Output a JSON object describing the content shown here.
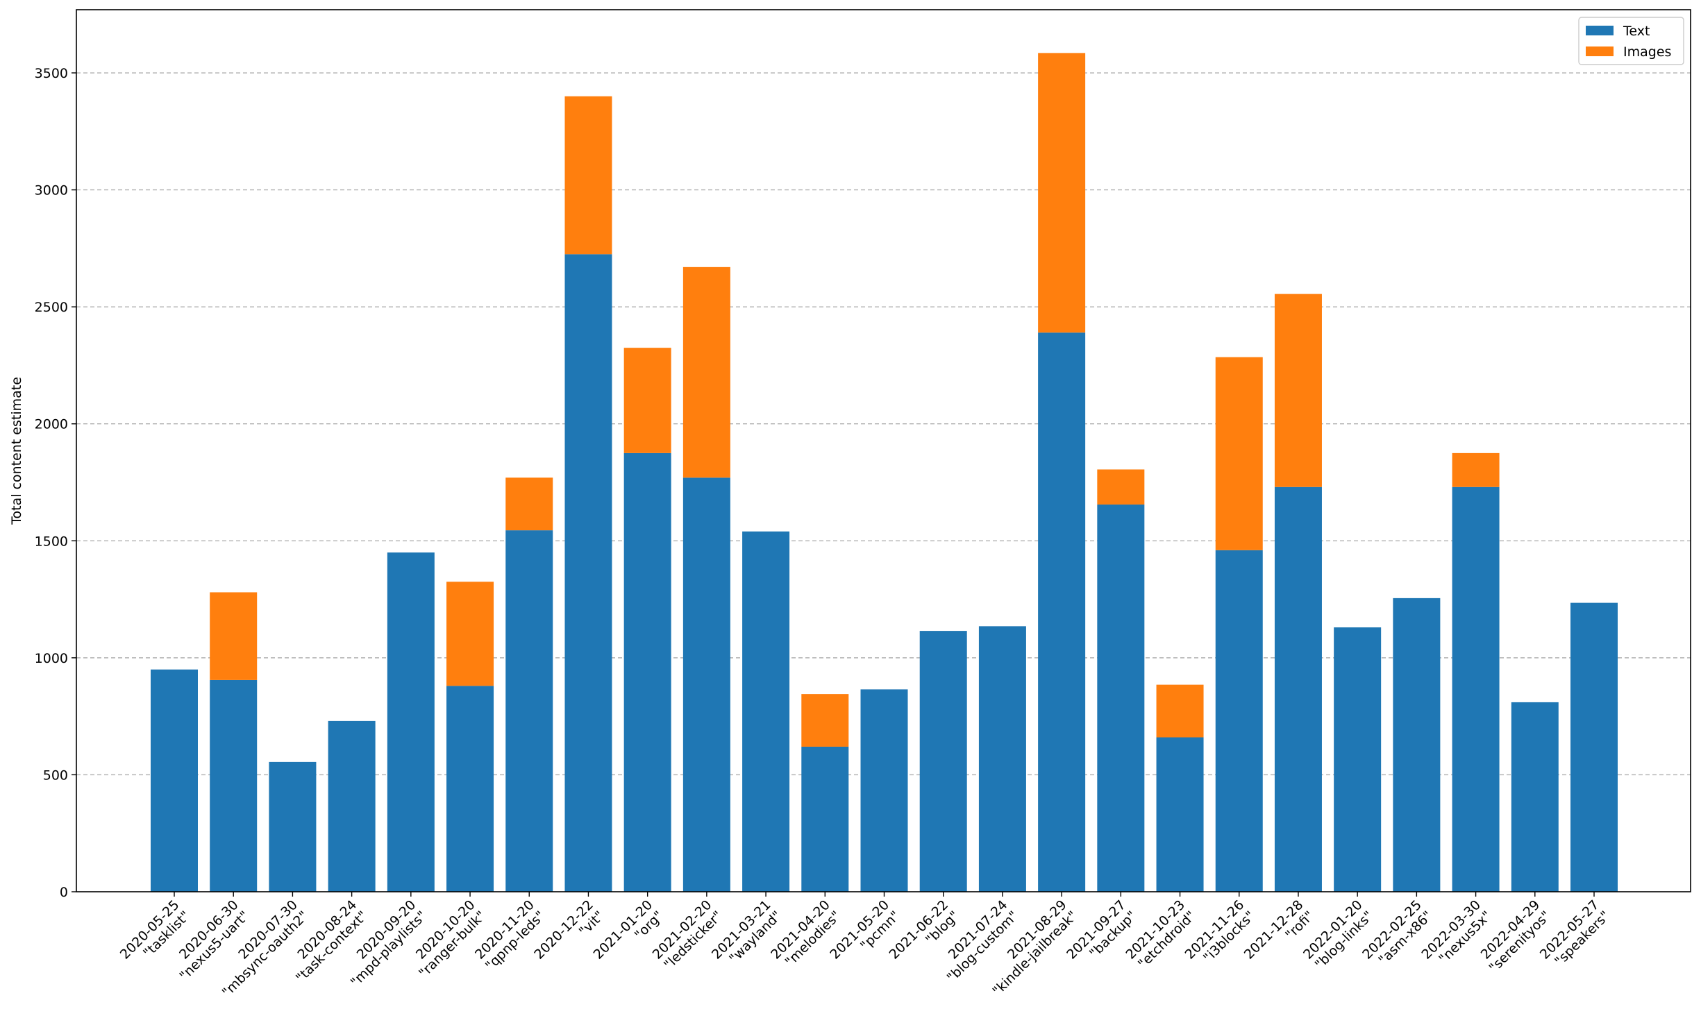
{
  "chart_data": {
    "type": "bar",
    "stacked": true,
    "ylabel": "Total content estimate",
    "xlabel": "",
    "title": "",
    "ylim": [
      0,
      3770
    ],
    "yticks": [
      0,
      500,
      1000,
      1500,
      2000,
      2500,
      3000,
      3500
    ],
    "grid": "horizontal dashed",
    "legend_position": "top-right",
    "categories": [
      "2020-05-25\n\"tasklist\"",
      "2020-06-30\n\"nexus5-uart\"",
      "2020-07-30\n\"mbsync-oauth2\"",
      "2020-08-24\n\"task-context\"",
      "2020-09-20\n\"mpd-playlists\"",
      "2020-10-20\n\"ranger-bulk\"",
      "2020-11-20\n\"qpnp-leds\"",
      "2020-12-22\n\"vit\"",
      "2021-01-20\n\"org\"",
      "2021-02-20\n\"ledsticker\"",
      "2021-03-21\n\"wayland\"",
      "2021-04-20\n\"melodies\"",
      "2021-05-20\n\"pcmn\"",
      "2021-06-22\n\"blog\"",
      "2021-07-24\n\"blog-custom\"",
      "2021-08-29\n\"kindle-jailbreak\"",
      "2021-09-27\n\"backup\"",
      "2021-10-23\n\"etchdroid\"",
      "2021-11-26\n\"i3blocks\"",
      "2021-12-28\n\"rofi\"",
      "2022-01-20\n\"blog-links\"",
      "2022-02-25\n\"asm-x86\"",
      "2022-03-30\n\"nexus5x\"",
      "2022-04-29\n\"serenityos\"",
      "2022-05-27\n\"speakers\""
    ],
    "series": [
      {
        "name": "Text",
        "color": "#1f77b4",
        "values": [
          950,
          905,
          555,
          730,
          1450,
          880,
          1545,
          2725,
          1875,
          1770,
          1540,
          620,
          865,
          1115,
          1135,
          2390,
          1655,
          660,
          1460,
          1730,
          1130,
          1255,
          1730,
          810,
          1235
        ]
      },
      {
        "name": "Images",
        "color": "#ff7f0e",
        "values": [
          0,
          375,
          0,
          0,
          0,
          445,
          225,
          675,
          450,
          900,
          0,
          225,
          0,
          0,
          0,
          1195,
          150,
          225,
          825,
          825,
          0,
          0,
          145,
          0,
          0
        ]
      }
    ]
  }
}
